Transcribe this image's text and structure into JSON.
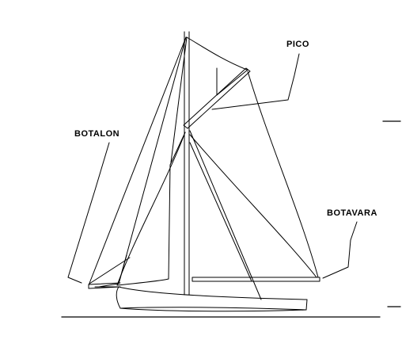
{
  "labels": {
    "pico": "PICO",
    "botalon": "BOTALON",
    "botavara": "BOTAVARA"
  },
  "colors": {
    "line": "#000000",
    "background": "#ffffff"
  }
}
